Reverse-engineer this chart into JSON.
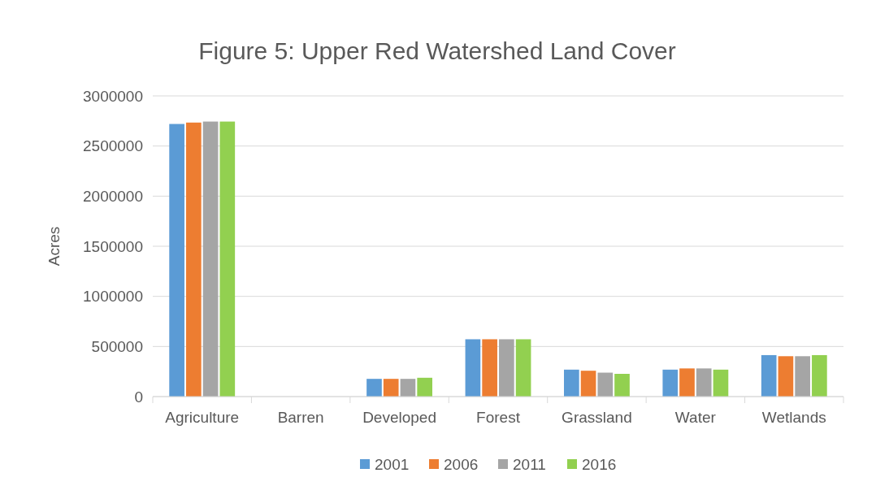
{
  "chart_data": {
    "type": "bar",
    "title": "Figure 5: Upper Red Watershed Land Cover",
    "ylabel": "Acres",
    "categories": [
      "Agriculture",
      "Barren",
      "Developed",
      "Forest",
      "Grassland",
      "Water",
      "Wetlands"
    ],
    "series": [
      {
        "name": "2001",
        "color": "#5b9bd5",
        "values": [
          2720000,
          0,
          177000,
          572000,
          269000,
          269000,
          414000
        ]
      },
      {
        "name": "2006",
        "color": "#ed7d31",
        "values": [
          2734000,
          0,
          177000,
          572000,
          258000,
          281000,
          403000
        ]
      },
      {
        "name": "2011",
        "color": "#a5a5a5",
        "values": [
          2744000,
          0,
          177000,
          572000,
          239000,
          281000,
          403000
        ]
      },
      {
        "name": "2016",
        "color": "#92d050",
        "values": [
          2744000,
          0,
          188000,
          572000,
          227000,
          269000,
          414000
        ]
      }
    ],
    "ylim": [
      0,
      3000000
    ],
    "yticks": [
      0,
      500000,
      1000000,
      1500000,
      2000000,
      2500000,
      3000000
    ],
    "grid": "y",
    "legend": "bottom"
  }
}
